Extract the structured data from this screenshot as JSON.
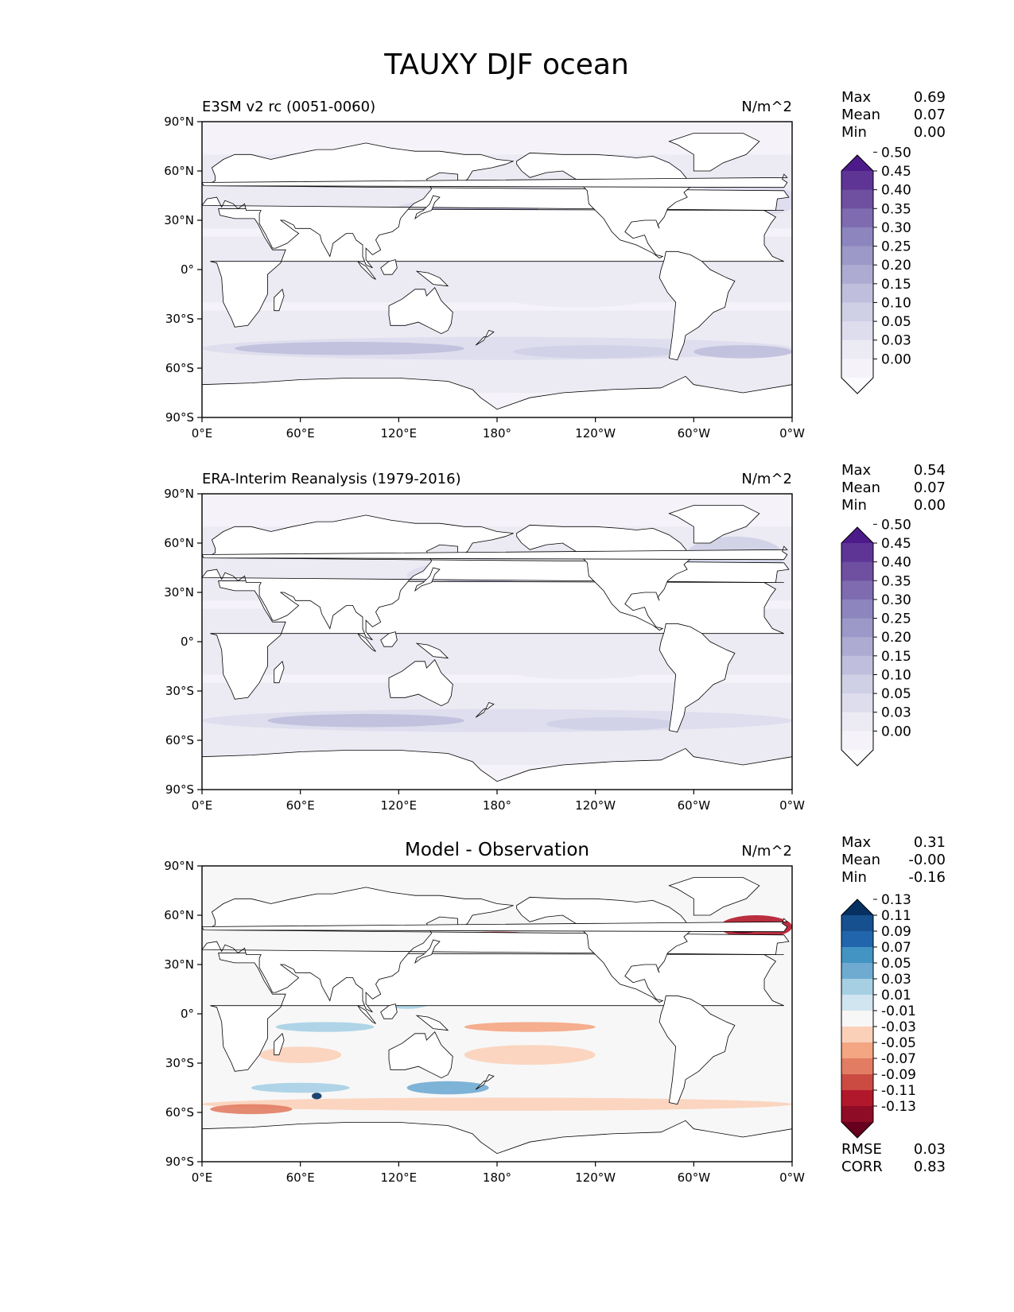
{
  "figure": {
    "title": "TAUXY DJF ocean"
  },
  "chart_data": [
    {
      "type": "heatmap",
      "title": "E3SM v2 rc (0051-0060)",
      "units": "N/m^2",
      "x_ticks": [
        "0°E",
        "60°E",
        "120°E",
        "180°",
        "120°W",
        "60°W",
        "0°W"
      ],
      "y_ticks": [
        "90°N",
        "60°N",
        "30°N",
        "0°",
        "30°S",
        "60°S",
        "90°S"
      ],
      "xlim": [
        0,
        360
      ],
      "ylim": [
        -90,
        90
      ],
      "stats": [
        {
          "label": "Max",
          "value": "0.69"
        },
        {
          "label": "Mean",
          "value": "0.07"
        },
        {
          "label": "Min",
          "value": "0.00"
        }
      ],
      "colorbar": {
        "levels": [
          "0.00",
          "0.03",
          "0.05",
          "0.10",
          "0.15",
          "0.20",
          "0.25",
          "0.30",
          "0.35",
          "0.40",
          "0.45",
          "0.50"
        ],
        "colors": [
          "#fcfbfd",
          "#f5f3f9",
          "#ecebf4",
          "#dedded",
          "#cfd0e6",
          "#bfbfdd",
          "#adabd2",
          "#9c98c7",
          "#8d86be",
          "#7e6bb0",
          "#6e4fa0",
          "#5e3595",
          "#4d1b89"
        ]
      }
    },
    {
      "type": "heatmap",
      "title": "ERA-Interim Reanalysis (1979-2016)",
      "units": "N/m^2",
      "x_ticks": [
        "0°E",
        "60°E",
        "120°E",
        "180°",
        "120°W",
        "60°W",
        "0°W"
      ],
      "y_ticks": [
        "90°N",
        "60°N",
        "30°N",
        "0°",
        "30°S",
        "60°S",
        "90°S"
      ],
      "xlim": [
        0,
        360
      ],
      "ylim": [
        -90,
        90
      ],
      "stats": [
        {
          "label": "Max",
          "value": "0.54"
        },
        {
          "label": "Mean",
          "value": "0.07"
        },
        {
          "label": "Min",
          "value": "0.00"
        }
      ],
      "colorbar": {
        "levels": [
          "0.00",
          "0.03",
          "0.05",
          "0.10",
          "0.15",
          "0.20",
          "0.25",
          "0.30",
          "0.35",
          "0.40",
          "0.45",
          "0.50"
        ],
        "colors": [
          "#fcfbfd",
          "#f5f3f9",
          "#ecebf4",
          "#dedded",
          "#cfd0e6",
          "#bfbfdd",
          "#adabd2",
          "#9c98c7",
          "#8d86be",
          "#7e6bb0",
          "#6e4fa0",
          "#5e3595",
          "#4d1b89"
        ]
      }
    },
    {
      "type": "heatmap",
      "title": "Model - Observation",
      "units": "N/m^2",
      "x_ticks": [
        "0°E",
        "60°E",
        "120°E",
        "180°",
        "120°W",
        "60°W",
        "0°W"
      ],
      "y_ticks": [
        "90°N",
        "60°N",
        "30°N",
        "0°",
        "30°S",
        "60°S",
        "90°S"
      ],
      "xlim": [
        0,
        360
      ],
      "ylim": [
        -90,
        90
      ],
      "stats": [
        {
          "label": "Max",
          "value": "0.31"
        },
        {
          "label": "Mean",
          "value": "-0.00"
        },
        {
          "label": "Min",
          "value": "-0.16"
        }
      ],
      "colorbar": {
        "levels": [
          "-0.13",
          "-0.11",
          "-0.09",
          "-0.07",
          "-0.05",
          "-0.03",
          "-0.01",
          "0.01",
          "0.03",
          "0.05",
          "0.07",
          "0.09",
          "0.11",
          "0.13"
        ],
        "colors": [
          "#67001f",
          "#8e0c25",
          "#b2182b",
          "#cb4b43",
          "#e27d63",
          "#f4a582",
          "#fbd0b9",
          "#f7f7f7",
          "#d1e5f0",
          "#a6cfe4",
          "#6fabd1",
          "#4393c3",
          "#2166ac",
          "#17508f",
          "#053061"
        ]
      },
      "metrics": [
        {
          "label": "RMSE",
          "value": "0.03"
        },
        {
          "label": "CORR",
          "value": "0.83"
        }
      ]
    }
  ]
}
